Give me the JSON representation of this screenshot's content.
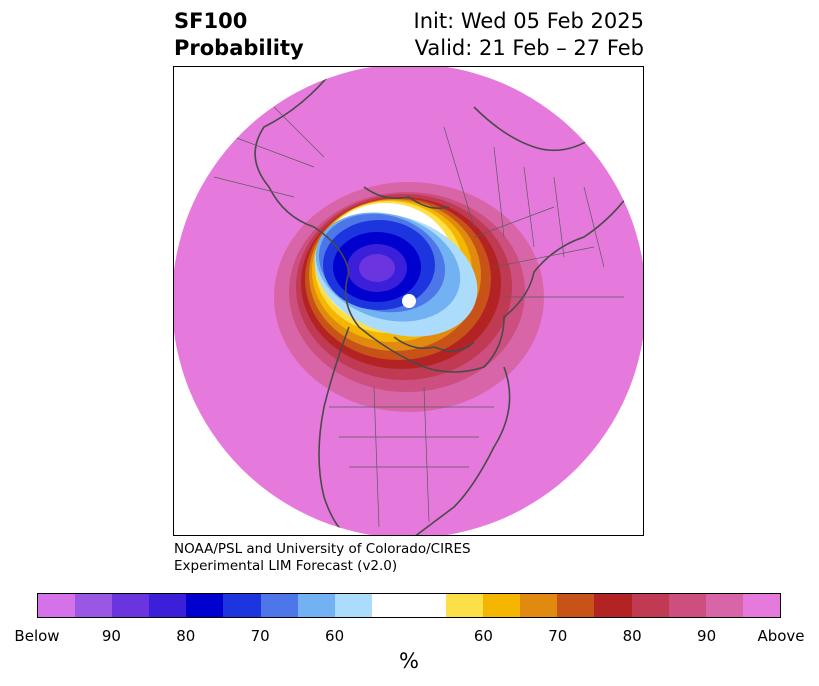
{
  "title": {
    "line1_left": "SF100",
    "line2_left": "Probability",
    "line1_right": "Init: Wed 05 Feb 2025",
    "line2_right": "Valid: 21 Feb – 27 Feb"
  },
  "credit": {
    "line1": "NOAA/PSL and University of Colorado/CIRES",
    "line2": "Experimental LIM Forecast (v2.0)"
  },
  "colorbar": {
    "colors": [
      "#d672e9",
      "#9a57e3",
      "#6a35df",
      "#3b1fd9",
      "#0000cf",
      "#1c35de",
      "#4d76e8",
      "#72b1f2",
      "#abdcfb",
      "#ffffff",
      "#ffffff",
      "#fde048",
      "#f4b600",
      "#e08a10",
      "#c85318",
      "#b42323",
      "#c13a53",
      "#cc4f7f",
      "#d965a9",
      "#e679dc"
    ],
    "labels": [
      "Below",
      "90",
      "80",
      "70",
      "60",
      "60",
      "70",
      "80",
      "90",
      "Above"
    ],
    "unit": "%"
  },
  "map": {
    "projection": "north polar stereographic",
    "background_color": "#e679dc",
    "outline_color": "#4a4a4a"
  }
}
